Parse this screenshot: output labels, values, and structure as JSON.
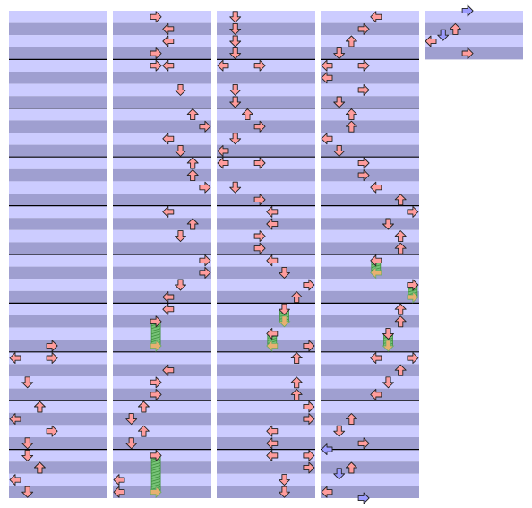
{
  "columns": [
    {
      "measures": 10,
      "notes": [
        [
          55,
          3
        ],
        [
          57,
          0
        ],
        [
          57,
          3
        ],
        [
          61,
          1
        ],
        [
          65,
          2
        ],
        [
          67,
          0
        ],
        [
          69,
          3
        ],
        [
          71,
          1
        ],
        [
          73,
          1
        ],
        [
          75,
          2
        ],
        [
          77,
          0
        ],
        [
          79,
          1
        ]
      ]
    },
    {
      "measures": 10,
      "notes": [
        [
          1,
          3
        ],
        [
          3,
          4
        ],
        [
          5,
          4
        ],
        [
          7,
          3
        ],
        [
          9,
          3
        ],
        [
          9,
          4
        ],
        [
          13,
          5
        ],
        [
          17,
          6
        ],
        [
          19,
          7
        ],
        [
          21,
          4
        ],
        [
          23,
          5
        ],
        [
          25,
          6
        ],
        [
          27,
          6
        ],
        [
          29,
          7
        ],
        [
          33,
          4
        ],
        [
          35,
          6
        ],
        [
          37,
          5
        ],
        [
          41,
          7
        ],
        [
          43,
          7
        ],
        [
          45,
          5
        ],
        [
          47,
          4
        ],
        [
          49,
          4
        ],
        [
          51,
          3,
          55
        ],
        [
          59,
          4
        ],
        [
          61,
          3
        ],
        [
          63,
          3
        ],
        [
          65,
          2
        ],
        [
          67,
          1
        ],
        [
          69,
          2
        ],
        [
          71,
          1
        ],
        [
          73,
          3,
          79
        ],
        [
          77,
          0
        ],
        [
          79,
          0
        ]
      ]
    },
    {
      "measures": 10,
      "notes": [
        [
          1,
          1
        ],
        [
          3,
          1
        ],
        [
          5,
          1
        ],
        [
          7,
          1
        ],
        [
          9,
          0
        ],
        [
          9,
          3
        ],
        [
          13,
          1
        ],
        [
          15,
          1
        ],
        [
          17,
          2
        ],
        [
          19,
          3
        ],
        [
          21,
          1
        ],
        [
          23,
          0
        ],
        [
          25,
          0
        ],
        [
          25,
          3
        ],
        [
          29,
          1
        ],
        [
          31,
          3
        ],
        [
          33,
          4
        ],
        [
          35,
          4
        ],
        [
          37,
          3
        ],
        [
          39,
          3
        ],
        [
          41,
          4
        ],
        [
          43,
          5
        ],
        [
          45,
          7
        ],
        [
          47,
          6
        ],
        [
          49,
          5,
          51
        ],
        [
          53,
          4,
          55
        ],
        [
          55,
          7
        ],
        [
          57,
          6
        ],
        [
          61,
          6
        ],
        [
          63,
          6
        ],
        [
          65,
          7
        ],
        [
          67,
          7
        ],
        [
          69,
          4
        ],
        [
          71,
          4
        ],
        [
          73,
          4
        ],
        [
          73,
          7
        ],
        [
          75,
          7
        ],
        [
          77,
          5
        ],
        [
          79,
          5
        ]
      ]
    },
    {
      "measures": 10,
      "notes": [
        [
          1,
          4
        ],
        [
          3,
          3
        ],
        [
          5,
          2
        ],
        [
          7,
          1
        ],
        [
          9,
          0
        ],
        [
          9,
          3
        ],
        [
          11,
          0
        ],
        [
          13,
          3
        ],
        [
          15,
          1
        ],
        [
          17,
          2
        ],
        [
          19,
          2
        ],
        [
          21,
          0
        ],
        [
          23,
          1
        ],
        [
          25,
          3
        ],
        [
          27,
          3
        ],
        [
          29,
          4
        ],
        [
          31,
          6
        ],
        [
          33,
          7
        ],
        [
          35,
          5
        ],
        [
          37,
          6
        ],
        [
          39,
          6
        ],
        [
          41,
          4,
          43
        ],
        [
          45,
          7,
          47
        ],
        [
          49,
          6
        ],
        [
          51,
          6
        ],
        [
          53,
          5,
          55
        ],
        [
          57,
          4
        ],
        [
          57,
          7
        ],
        [
          59,
          6
        ],
        [
          61,
          5
        ],
        [
          63,
          4
        ],
        [
          67,
          2
        ],
        [
          69,
          1
        ],
        [
          71,
          3
        ],
        [
          72,
          0
        ],
        [
          75,
          2
        ],
        [
          76,
          1
        ],
        [
          79,
          0
        ],
        [
          80,
          3
        ]
      ]
    },
    {
      "measures": 1,
      "notes": [
        [
          0,
          3
        ],
        [
          3,
          2
        ],
        [
          4,
          1
        ],
        [
          5,
          0
        ],
        [
          7,
          3
        ]
      ]
    }
  ]
}
